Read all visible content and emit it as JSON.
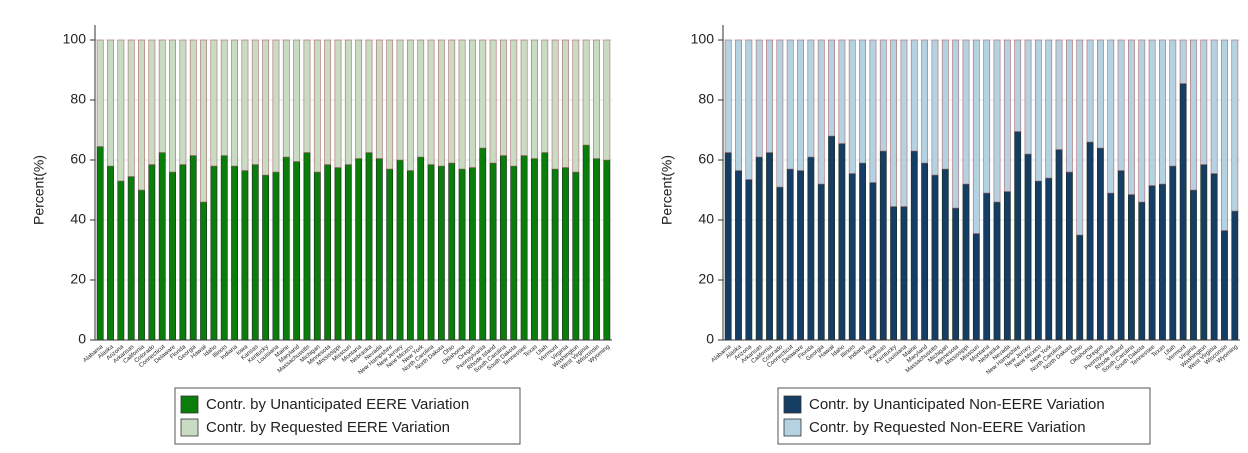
{
  "chart_data": [
    {
      "type": "bar",
      "stacked": true,
      "ylabel": "Percent(%)",
      "grid": true,
      "legend": "bottom",
      "categories": [
        "Alabama",
        "Alaska",
        "Arizona",
        "Arkansas",
        "California",
        "Colorado",
        "Connecticut",
        "Delaware",
        "Florida",
        "Georgia",
        "Hawaii",
        "Idaho",
        "Illinois",
        "Indiana",
        "Iowa",
        "Kansas",
        "Kentucky",
        "Louisiana",
        "Maine",
        "Maryland",
        "Massachusetts",
        "Michigan",
        "Minnesota",
        "Mississippi",
        "Missouri",
        "Montana",
        "Nebraska",
        "Nevada",
        "New Hampshire",
        "New Jersey",
        "New Mexico",
        "New York",
        "North Carolina",
        "North Dakota",
        "Ohio",
        "Oklahoma",
        "Oregon",
        "Pennsylvania",
        "Rhode Island",
        "South Carolina",
        "South Dakota",
        "Tennessee",
        "Texas",
        "Utah",
        "Vermont",
        "Virginia",
        "Washington",
        "West Virginia",
        "Wisconsin",
        "Wyoming"
      ],
      "series": [
        {
          "name": "Contr. by Unanticipated EERE Variation",
          "color": "#0a7d0a",
          "values": [
            64.5,
            58,
            53,
            54.5,
            50,
            58.5,
            62.5,
            56,
            58.5,
            61.5,
            46,
            58,
            61.5,
            58,
            56.5,
            58.5,
            55,
            56,
            61,
            59.5,
            62.5,
            56,
            58.5,
            57.5,
            58.5,
            60.5,
            62.5,
            60.5,
            57,
            60,
            56.5,
            61,
            58.5,
            58,
            59,
            57,
            57.5,
            64,
            59,
            61.5,
            58,
            61.5,
            60.5,
            62.5,
            57,
            57.5,
            56,
            65,
            60.5,
            60
          ]
        },
        {
          "name": "Contr. by Requested EERE Variation",
          "color": "#c9dcc3",
          "values": [
            35.5,
            42,
            47,
            45.5,
            50,
            41.5,
            37.5,
            44,
            41.5,
            38.5,
            54,
            42,
            38.5,
            42,
            43.5,
            41.5,
            45,
            44,
            39,
            40.5,
            37.5,
            44,
            41.5,
            42.5,
            41.5,
            39.5,
            37.5,
            39.5,
            43,
            40,
            43.5,
            39,
            41.5,
            42,
            41,
            43,
            42.5,
            36,
            41,
            38.5,
            42,
            38.5,
            39.5,
            37.5,
            43,
            42.5,
            44,
            35,
            39.5,
            40
          ]
        }
      ],
      "ylim": [
        0,
        100
      ],
      "yticks": [
        0,
        20,
        40,
        60,
        80,
        100
      ]
    },
    {
      "type": "bar",
      "stacked": true,
      "ylabel": "Percent(%)",
      "grid": true,
      "legend": "bottom",
      "categories": [
        "Alabama",
        "Alaska",
        "Arizona",
        "Arkansas",
        "California",
        "Colorado",
        "Connecticut",
        "Delaware",
        "Florida",
        "Georgia",
        "Hawaii",
        "Idaho",
        "Illinois",
        "Indiana",
        "Iowa",
        "Kansas",
        "Kentucky",
        "Louisiana",
        "Maine",
        "Maryland",
        "Massachusetts",
        "Michigan",
        "Minnesota",
        "Mississippi",
        "Missouri",
        "Montana",
        "Nebraska",
        "Nevada",
        "New Hampshire",
        "New Jersey",
        "New Mexico",
        "New York",
        "North Carolina",
        "North Dakota",
        "Ohio",
        "Oklahoma",
        "Oregon",
        "Pennsylvania",
        "Rhode Island",
        "South Carolina",
        "South Dakota",
        "Tennessee",
        "Texas",
        "Utah",
        "Vermont",
        "Virginia",
        "Washington",
        "West Virginia",
        "Wisconsin",
        "Wyoming"
      ],
      "series": [
        {
          "name": "Contr. by Unanticipated Non-EERE Variation",
          "color": "#163e64",
          "values": [
            62.5,
            56.5,
            53.5,
            61,
            62.5,
            51,
            57,
            56.5,
            61,
            52,
            68,
            65.5,
            55.5,
            59,
            52.5,
            63,
            44.5,
            44.5,
            63,
            59,
            55,
            57,
            44,
            52,
            35.5,
            49,
            46,
            49.5,
            69.5,
            62,
            53,
            54,
            63.5,
            56,
            35,
            66,
            64,
            49,
            56.5,
            48.5,
            46,
            51.5,
            52,
            58,
            85.5,
            50,
            58.5,
            55.5,
            36.5,
            43
          ]
        },
        {
          "name": "Contr. by Requested Non-EERE Variation",
          "color": "#b5d2e2",
          "values": [
            37.5,
            43.5,
            46.5,
            39,
            37.5,
            49,
            43,
            43.5,
            39,
            48,
            32,
            34.5,
            44.5,
            41,
            47.5,
            37,
            55.5,
            55.5,
            37,
            41,
            45,
            43,
            56,
            48,
            64.5,
            51,
            54,
            50.5,
            30.5,
            38,
            47,
            46,
            36.5,
            44,
            65,
            34,
            36,
            51,
            43.5,
            51.5,
            54,
            48.5,
            48,
            42,
            14.5,
            50,
            41.5,
            44.5,
            63.5,
            57
          ]
        }
      ],
      "ylim": [
        0,
        100
      ],
      "yticks": [
        0,
        20,
        40,
        60,
        80,
        100
      ]
    }
  ]
}
